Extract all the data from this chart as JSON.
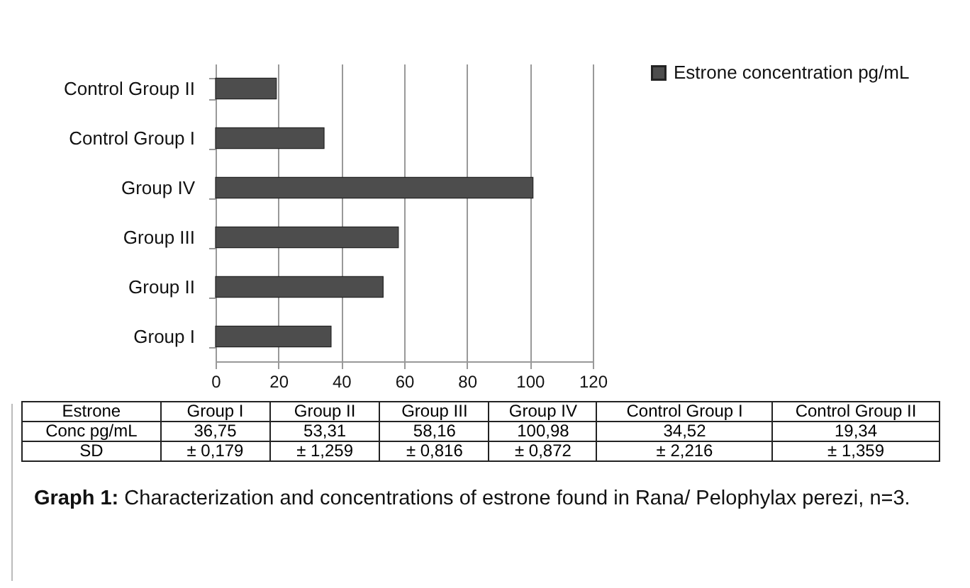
{
  "chart_data": {
    "type": "bar",
    "orientation": "horizontal",
    "categories": [
      "Control Group II",
      "Control Group I",
      "Group  IV",
      "Group  III",
      "Group II",
      "Group I"
    ],
    "series": [
      {
        "name": "Estrone concentration pg/mL",
        "color": "#4d4d4d",
        "values": [
          19.34,
          34.52,
          100.98,
          58.16,
          53.31,
          36.75
        ]
      }
    ],
    "xlim": [
      0,
      120
    ],
    "xticks": [
      0,
      20,
      40,
      60,
      80,
      100,
      120
    ],
    "grid": "x",
    "legend": "right",
    "annotations": [
      "Estrone",
      "Group I",
      "Group II",
      "Group III",
      "Group IV",
      "Control Group I",
      "Control Group II",
      "Conc pg/mL",
      "36,75",
      "53,31",
      "58,16",
      "100,98",
      "34,52",
      "19,34",
      "SD",
      "± 0,179",
      "± 1,259",
      "± 0,816",
      "± 0,872",
      "± 2,216",
      "± 1,359",
      "Graph 1:",
      "Characterization and concentrations of estrone found in Rana/ Pelophylax perezi, n=3."
    ]
  }
}
